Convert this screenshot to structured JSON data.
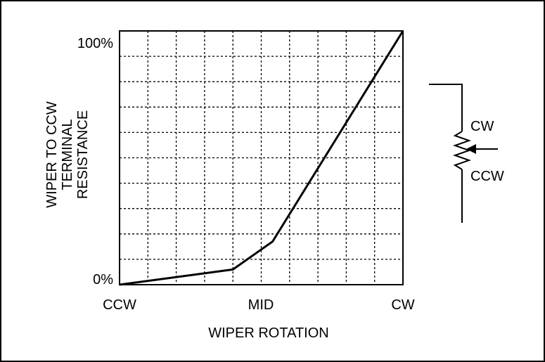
{
  "chart_data": {
    "type": "line",
    "title": "",
    "xlabel": "WIPER ROTATION",
    "ylabel_lines": [
      "WIPER TO CCW",
      "TERMINAL",
      "RESISTANCE"
    ],
    "x_tick_labels": [
      "CCW",
      "MID",
      "CW"
    ],
    "y_tick_labels": [
      "0%",
      "100%"
    ],
    "xlim": [
      0,
      100
    ],
    "ylim": [
      0,
      100
    ],
    "grid": true,
    "grid_divisions": {
      "x": 10,
      "y": 10
    },
    "series": [
      {
        "x": [
          0,
          40,
          54,
          100
        ],
        "y": [
          0,
          6,
          17,
          100
        ]
      }
    ],
    "line_color": "#000000"
  },
  "schematic": {
    "cw_label": "CW",
    "ccw_label": "CCW"
  }
}
